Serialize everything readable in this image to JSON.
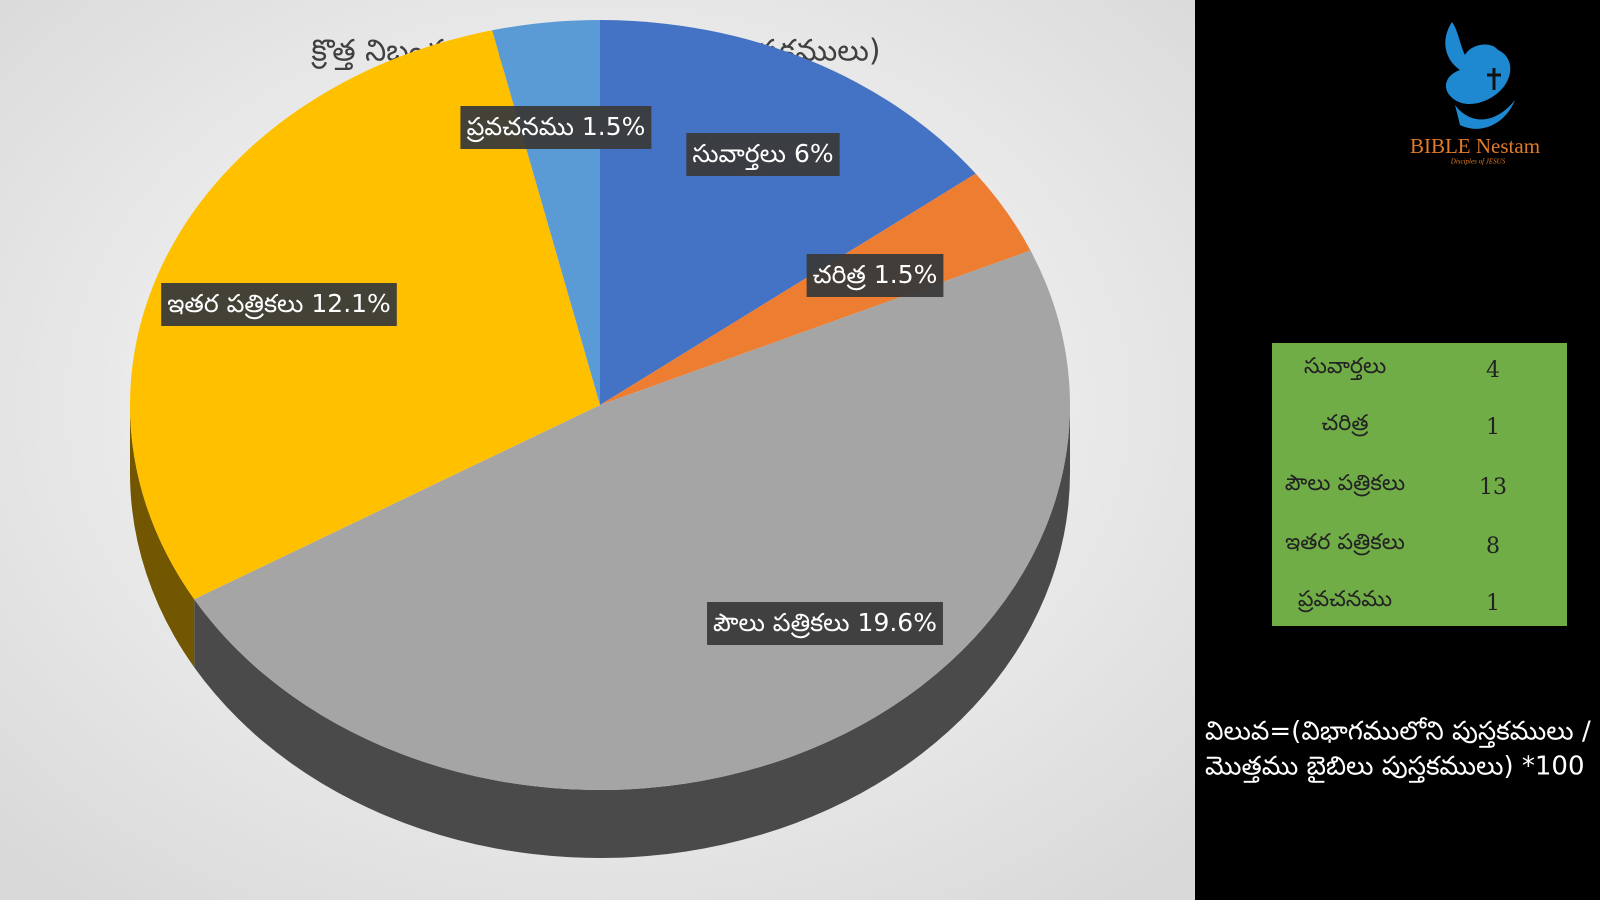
{
  "chart_data": {
    "type": "pie",
    "title": "క్రొత్త నిబంధన విభాగములు (బైబిలు పుస్తకములు)",
    "categories": [
      "సువార్తలు",
      "చరిత్ర",
      "పౌలు పత్రికలు",
      "ఇతర పత్రికలు",
      "ప్రవచనము"
    ],
    "values": [
      6,
      1.5,
      19.6,
      12.1,
      1.5
    ],
    "value_labels": [
      "6%",
      "1.5%",
      "19.6%",
      "12.1%",
      "1.5%"
    ],
    "colors": [
      "#4472c4",
      "#ed7d31",
      "#a5a5a5",
      "#ffc000",
      "#5b9bd5"
    ]
  },
  "table": {
    "rows": [
      [
        "సువార్తలు",
        "4"
      ],
      [
        "చరిత్ర",
        "1"
      ],
      [
        "పౌలు పత్రికలు",
        "13"
      ],
      [
        "ఇతర పత్రికలు",
        "8"
      ],
      [
        "ప్రవచనము",
        "1"
      ]
    ]
  },
  "formula": {
    "lines": [
      "విలువ=(విభాగములోని పుస్తకములు /",
      "మొత్తము బైబిలు పుస్తకములు) *100"
    ]
  },
  "logo": {
    "name": "BIBLE Nestam",
    "tagline": "Disciples of JESUS"
  }
}
